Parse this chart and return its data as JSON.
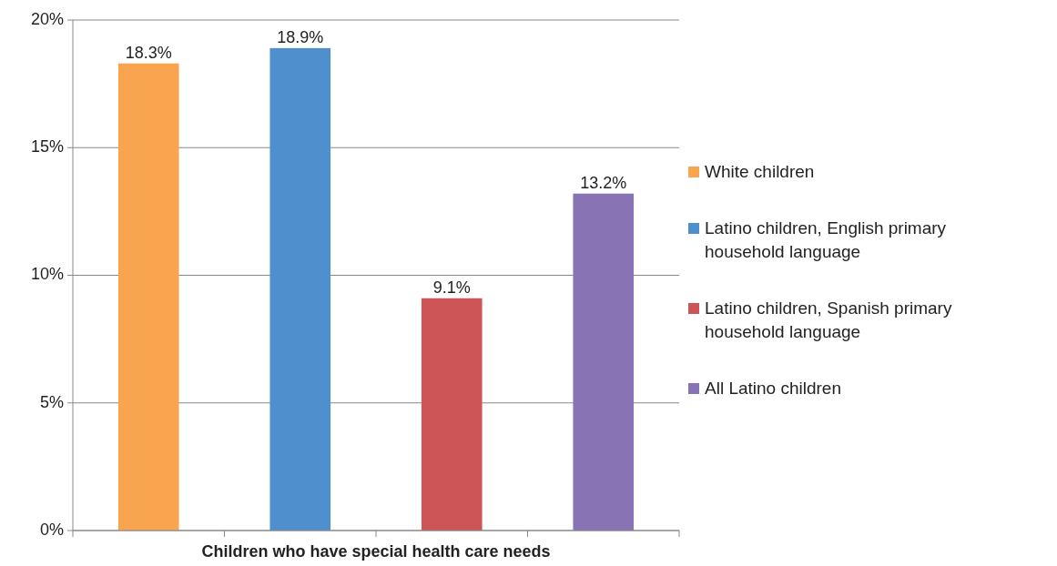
{
  "chart_data": {
    "type": "bar",
    "stacked": true,
    "xlabel": "Children who have special health care needs",
    "categories": [
      null,
      null,
      null,
      null
    ],
    "series": [
      {
        "name": "White children",
        "color": "#f9a44f",
        "values": [
          18.3,
          null,
          null,
          null
        ]
      },
      {
        "name": "Latino children,  English primary household language",
        "color": "#4f8fcd",
        "values": [
          null,
          18.9,
          null,
          null
        ]
      },
      {
        "name": "Latino children,  Spanish primary household language",
        "color": "#cd5557",
        "values": [
          null,
          null,
          9.1,
          null
        ]
      },
      {
        "name": "All Latino children",
        "color": "#8874b4",
        "values": [
          null,
          null,
          null,
          13.2
        ]
      }
    ],
    "value_labels": [
      "18.3%",
      "18.9%",
      "9.1%",
      "13.2%"
    ],
    "ylim": [
      0,
      20
    ],
    "yticks": [
      {
        "value": 0,
        "label": "0%"
      },
      {
        "value": 5,
        "label": "5%"
      },
      {
        "value": 10,
        "label": "10%"
      },
      {
        "value": 15,
        "label": "15%"
      },
      {
        "value": 20,
        "label": "20%"
      }
    ],
    "grid": "y",
    "legend": "right"
  }
}
